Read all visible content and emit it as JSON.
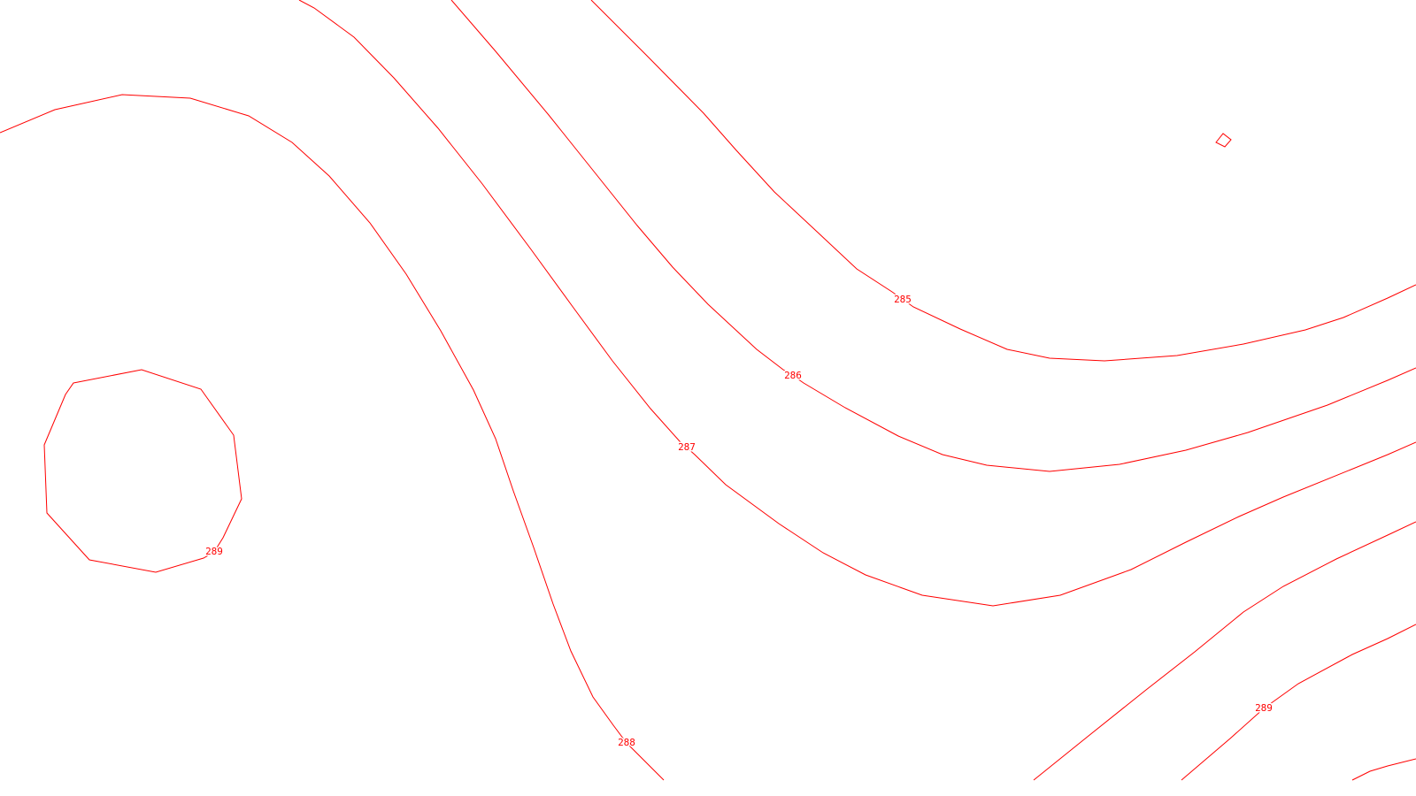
{
  "map": {
    "background_color": "#ffffff",
    "contour_color": "#ff0000",
    "contours": [
      {
        "id": "c285",
        "elevation": "285"
      },
      {
        "id": "c286",
        "elevation": "286"
      },
      {
        "id": "c287",
        "elevation": "287"
      },
      {
        "id": "c288",
        "elevation": "288"
      },
      {
        "id": "c289-ring",
        "elevation": "289"
      },
      {
        "id": "c289-right",
        "elevation": "289"
      },
      {
        "id": "c289-lower-right",
        "elevation": ""
      },
      {
        "id": "c289-corner",
        "elevation": ""
      },
      {
        "id": "small-closed-contour",
        "elevation": ""
      }
    ]
  }
}
